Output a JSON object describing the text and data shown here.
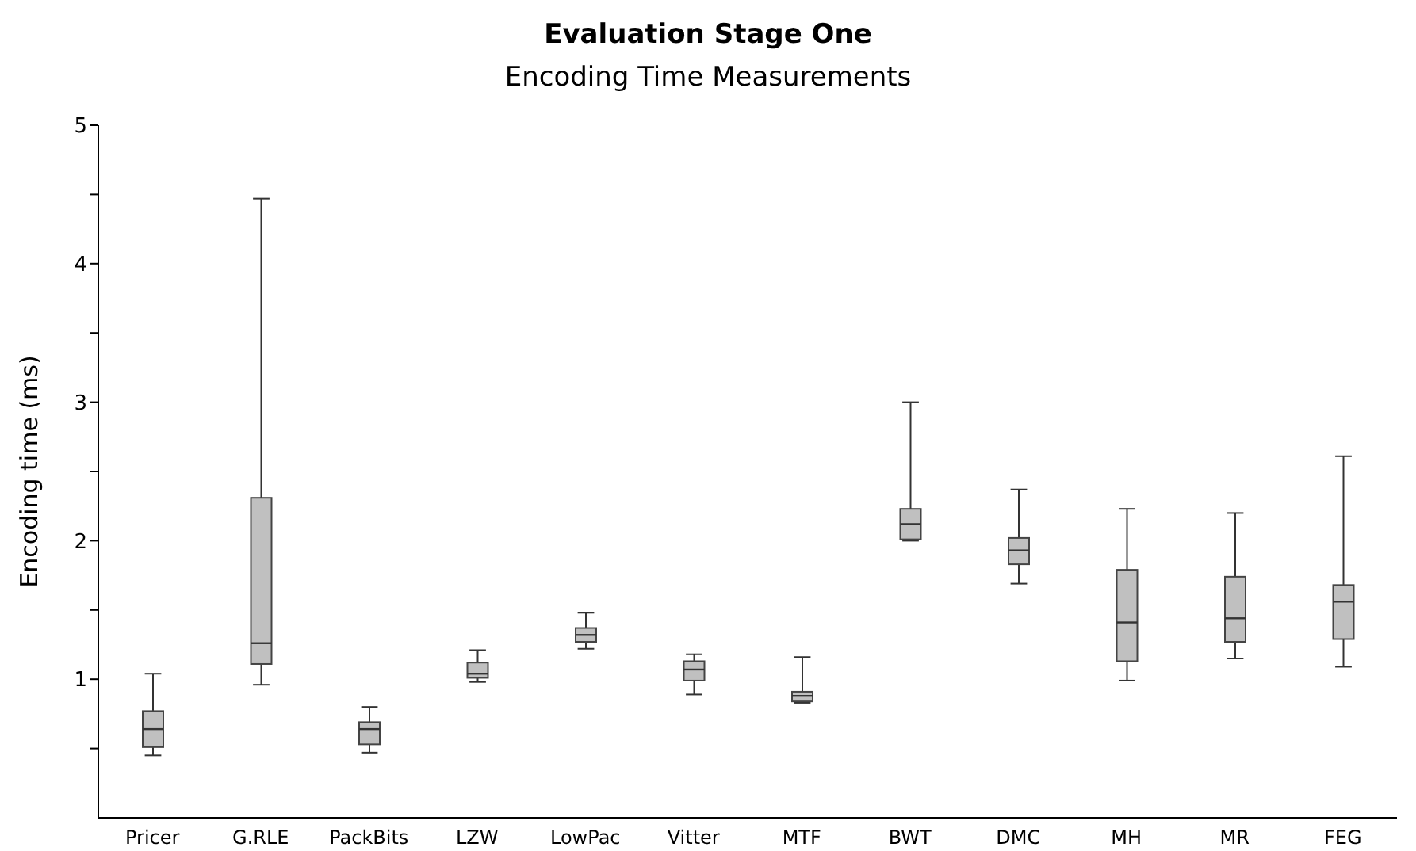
{
  "chart_data": {
    "type": "box",
    "title": "Evaluation Stage One",
    "subtitle": "Encoding Time Measurements",
    "ylabel": "Encoding time (ms)",
    "categories": [
      "Pricer",
      "G.RLE",
      "PackBits",
      "LZW",
      "LowPac",
      "Vitter",
      "MTF",
      "BWT",
      "DMC",
      "MH",
      "MR",
      "FEG"
    ],
    "color": "#c0c0c0",
    "ylim": [
      0,
      5
    ],
    "yticks": [
      {
        "value": 0.5,
        "label": null
      },
      1,
      {
        "value": 1.5,
        "label": null
      },
      2,
      {
        "value": 2.5,
        "label": null
      },
      3,
      {
        "value": 3.5,
        "label": null
      },
      4,
      {
        "value": 4.5,
        "label": null
      },
      5
    ],
    "boxes": [
      {
        "low": 0.45,
        "q1": 0.51,
        "median": 0.64,
        "q3": 0.77,
        "high": 1.04
      },
      {
        "low": 0.96,
        "q1": 1.11,
        "median": 1.26,
        "q3": 2.31,
        "high": 4.47
      },
      {
        "low": 0.47,
        "q1": 0.53,
        "median": 0.64,
        "q3": 0.69,
        "high": 0.8
      },
      {
        "low": 0.98,
        "q1": 1.01,
        "median": 1.04,
        "q3": 1.12,
        "high": 1.21
      },
      {
        "low": 1.22,
        "q1": 1.27,
        "median": 1.32,
        "q3": 1.37,
        "high": 1.48
      },
      {
        "low": 0.89,
        "q1": 0.99,
        "median": 1.07,
        "q3": 1.13,
        "high": 1.18
      },
      {
        "low": 0.83,
        "q1": 0.84,
        "median": 0.88,
        "q3": 0.91,
        "high": 1.16
      },
      {
        "low": 2.0,
        "q1": 2.01,
        "median": 2.12,
        "q3": 2.23,
        "high": 3.0
      },
      {
        "low": 1.69,
        "q1": 1.83,
        "median": 1.93,
        "q3": 2.02,
        "high": 2.37
      },
      {
        "low": 0.99,
        "q1": 1.13,
        "median": 1.41,
        "q3": 1.79,
        "high": 2.23
      },
      {
        "low": 1.15,
        "q1": 1.27,
        "median": 1.44,
        "q3": 1.74,
        "high": 2.2
      },
      {
        "low": 1.09,
        "q1": 1.29,
        "median": 1.56,
        "q3": 1.68,
        "high": 2.61
      }
    ]
  }
}
